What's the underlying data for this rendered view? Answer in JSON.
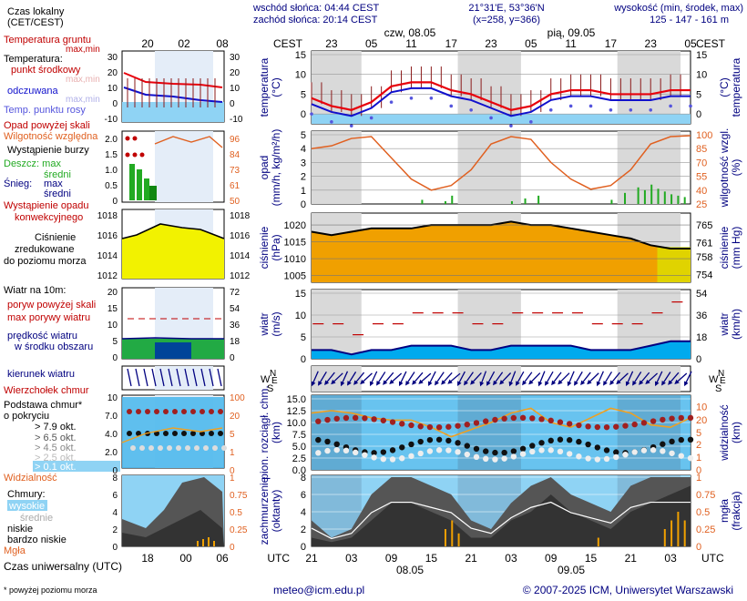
{
  "header": {
    "sunrise": "wschód słońca: 04:44 CEST",
    "sunset": "zachód słońca: 20:14 CEST",
    "coords": "21°31'E, 53°36'N",
    "grid": "(x=258, y=366)",
    "elev_title": "wysokość (min, środek, max)",
    "elev_values": "125 - 147 - 161 m",
    "tz": "CEST",
    "day1": "czw, 08.05",
    "day2": "pią, 09.05",
    "time_ticks": [
      "23",
      "05",
      "11",
      "17",
      "23",
      "05",
      "11",
      "17",
      "23",
      "05"
    ]
  },
  "legend": {
    "time_local": "Czas lokalny",
    "time_local2": "(CET/CEST)",
    "local_ticks": [
      "20",
      "02",
      "08"
    ],
    "utc_ticks": [
      "18",
      "00",
      "06"
    ],
    "temp_ground": "Temperatura gruntu",
    "max_min": "max,min",
    "temperatura": "Temperatura:",
    "punkt": "punkt środkowy",
    "max_min2": "max,min",
    "odczuwana": "odczuwana",
    "max_min3": "max,min",
    "dew": "Temp. punktu rosy",
    "opad_above": "Opad powyżej skali",
    "humidity": "Wilgotność względna",
    "storm": "Wystąpienie burzy",
    "rain": "Deszcz: max",
    "srednia": "średni",
    "snow": "Śnieg:",
    "snow_max": "max",
    "snow_mean": "średni",
    "convective": "Wystąpienie opadu",
    "convective2": "konwekcyjnego",
    "pressure1": "Ciśnienie",
    "pressure2": "zredukowane",
    "pressure3": "do poziomu morza",
    "wind_title": "Wiatr na 10m:",
    "gust_above": "poryw powyżej skali",
    "gust_max": "max porywy wiatru",
    "wind_mean": "prędkość wiatru",
    "wind_mean2": "w środku obszaru",
    "wind_dir": "kierunek wiatru",
    "windchill": "Wierzchołek chmur",
    "cloud_base": "Podstawa chmur*",
    "cloud_base2": "o pokryciu",
    "okt1": "> 7.9 okt.",
    "okt2": "> 6.5 okt.",
    "okt3": "> 4.5 okt.",
    "okt4": "> 2.5 okt.",
    "okt5": "> 0.1 okt.",
    "visibility": "Widzialność",
    "clouds": "Chmury:",
    "high": "wysokie",
    "mid": "średnie",
    "low": "niskie",
    "verylow": "bardzo niskie",
    "fog": "Mgła",
    "utc_label": "Czas uniwersalny (UTC)",
    "footnote": "* powyżej poziomu morza"
  },
  "panel_labels": {
    "temp": [
      "temperatura",
      "(°C)"
    ],
    "temp_r": "(°C)",
    "temp_r2": "temperatura",
    "precip": [
      "opad",
      "(mm/h, kg/m²/h)"
    ],
    "humid_r": [
      "wilgotność wzgl.",
      "(%)"
    ],
    "press": [
      "ciśnienie",
      "(hPa)"
    ],
    "press_r": [
      "ciśnienie",
      "(mm Hg)"
    ],
    "wind": [
      "wiatr",
      "(m/s)"
    ],
    "wind_r": [
      "wiatr",
      "(km/h)"
    ],
    "cloud": [
      "pion. rozciągł. chm.",
      "(km)"
    ],
    "vis_r": [
      "widzialność",
      "(km)"
    ],
    "cover": [
      "zachmurzenie",
      "(oktanty)"
    ],
    "fog_r": [
      "mgła",
      "(frakcja)"
    ]
  },
  "axes": {
    "temp_left": [
      "15",
      "10",
      "5",
      "0"
    ],
    "temp_right": [
      "15",
      "10",
      "5",
      "0"
    ],
    "legend_temp_left": [
      "30",
      "20",
      "10",
      "0",
      "-10"
    ],
    "legend_temp_right": [
      "30",
      "20",
      "10",
      "0",
      "-10"
    ],
    "precip_left": [
      "5",
      "4",
      "3",
      "2",
      "1",
      "0"
    ],
    "precip_right": [
      "100",
      "85",
      "70",
      "55",
      "40",
      "25"
    ],
    "legend_precip_left": [
      "2.0",
      "1.5",
      "1.0",
      "0.5",
      "0"
    ],
    "legend_precip_right": [
      "96",
      "84",
      "73",
      "61",
      "50"
    ],
    "press_left": [
      "1020",
      "1015",
      "1010",
      "1005"
    ],
    "press_right": [
      "765",
      "761",
      "758",
      "754"
    ],
    "legend_press_left": [
      "1018",
      "1016",
      "1014",
      "1012"
    ],
    "legend_press_right": [
      "1018",
      "1016",
      "1014",
      "1012"
    ],
    "wind_left": [
      "15",
      "10",
      "5",
      "0"
    ],
    "wind_right": [
      "54",
      "36",
      "18",
      "0"
    ],
    "legend_wind_left": [
      "20",
      "15",
      "10",
      "5",
      "0"
    ],
    "legend_wind_right": [
      "72",
      "54",
      "36",
      "18",
      "0"
    ],
    "cloud_left": [
      "15.0",
      "12.5",
      "10.0",
      "7.5",
      "5.0",
      "2.5",
      "0.0"
    ],
    "cloud_right": [
      "10",
      "20",
      "5",
      "2",
      "1",
      "0"
    ],
    "legend_cloud_left": [
      "10",
      "7.0",
      "4.0",
      "2.0",
      "0"
    ],
    "legend_cloud_right": [
      "100",
      "20",
      "5",
      "1",
      "0"
    ],
    "cover_left": [
      "8",
      "6",
      "4",
      "2",
      "0"
    ],
    "cover_right": [
      "1",
      "0.75",
      "0.5",
      "0.25",
      "0"
    ],
    "legend_cover_left": [
      "8",
      "6",
      "4",
      "2",
      "0"
    ],
    "legend_cover_right": [
      "1",
      "0.75",
      "0.5",
      "0.25",
      "0"
    ],
    "utc_ticks": [
      "21",
      "03",
      "09",
      "15",
      "21",
      "03",
      "09",
      "15",
      "21",
      "03"
    ],
    "date_ticks": [
      "08.05",
      "09.05"
    ]
  },
  "footer": {
    "email": "meteo@icm.edu.pl",
    "copyright": "© 2007-2025 ICM, Uniwersytet Warszawski"
  },
  "colors": {
    "red": "#e8000b",
    "blue": "#1010cc",
    "navy": "#000080",
    "sky": "#8fd3f4",
    "night": "#d9d9d9",
    "orange": "#e06020",
    "green": "#22aa22",
    "yellow": "#f2f200",
    "pressure_orange": "#f0a000"
  },
  "chart_data": {
    "type": "line",
    "x_hours_utc": [
      0,
      3,
      6,
      9,
      12,
      15,
      18,
      21,
      24,
      27,
      30,
      33,
      36,
      39,
      42,
      45,
      48,
      51,
      54,
      57
    ],
    "temperature": [
      4,
      2,
      1,
      3,
      7,
      8,
      8,
      6,
      5,
      3,
      1,
      2,
      5,
      6,
      6,
      5,
      5,
      5,
      6,
      6
    ],
    "pressure": [
      1018,
      1017,
      1018,
      1019,
      1019,
      1019,
      1020,
      1020,
      1020,
      1020,
      1021,
      1020,
      1020,
      1019,
      1018,
      1017,
      1016,
      1014,
      1013,
      1013
    ],
    "humidity": [
      85,
      88,
      96,
      98,
      75,
      52,
      40,
      45,
      62,
      90,
      98,
      95,
      70,
      52,
      41,
      45,
      62,
      90,
      98,
      99
    ],
    "wind": [
      2,
      2,
      1,
      2,
      2,
      3,
      3,
      3,
      2,
      2,
      3,
      3,
      3,
      3,
      2,
      2,
      2,
      3,
      4,
      4
    ]
  }
}
